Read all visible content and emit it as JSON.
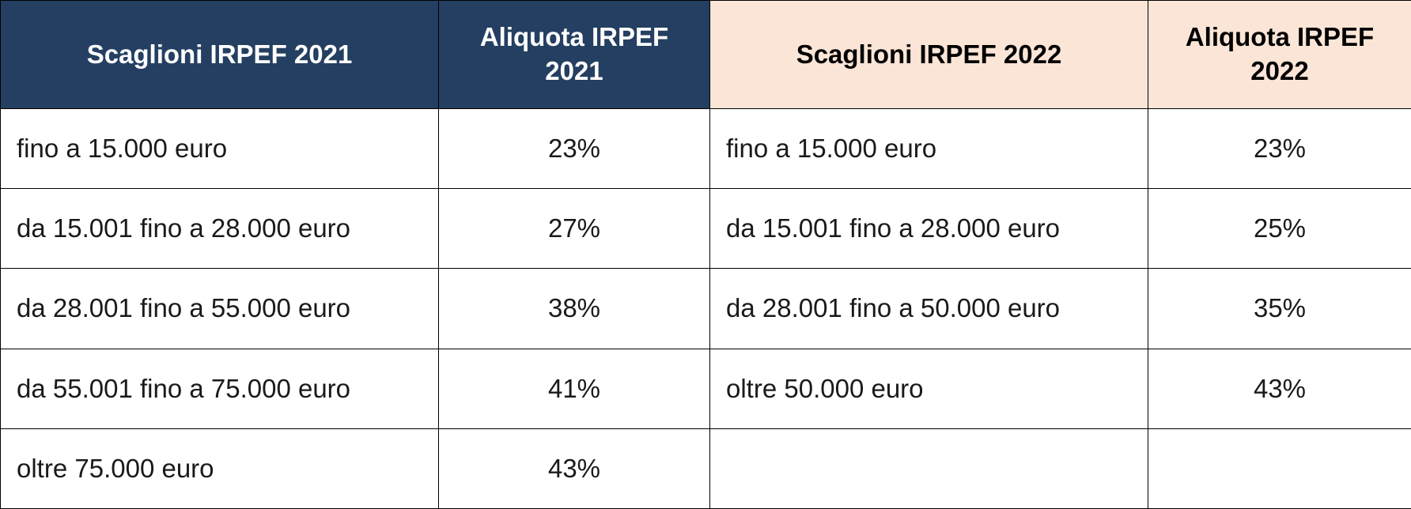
{
  "table": {
    "headers": [
      "Scaglioni IRPEF 2021",
      "Aliquota IRPEF 2021",
      "Scaglioni IRPEF 2022",
      "Aliquota IRPEF 2022"
    ],
    "rows": [
      [
        "fino a 15.000 euro",
        "23%",
        "fino a 15.000 euro",
        "23%"
      ],
      [
        "da 15.001 fino a 28.000 euro",
        "27%",
        "da 15.001 fino a 28.000 euro",
        "25%"
      ],
      [
        "da 28.001 fino a 55.000 euro",
        "38%",
        "da 28.001 fino a 50.000 euro",
        "35%"
      ],
      [
        "da 55.001 fino a 75.000 euro",
        "41%",
        "oltre 50.000 euro",
        "43%"
      ],
      [
        "oltre 75.000 euro",
        "43%"
      ]
    ]
  }
}
